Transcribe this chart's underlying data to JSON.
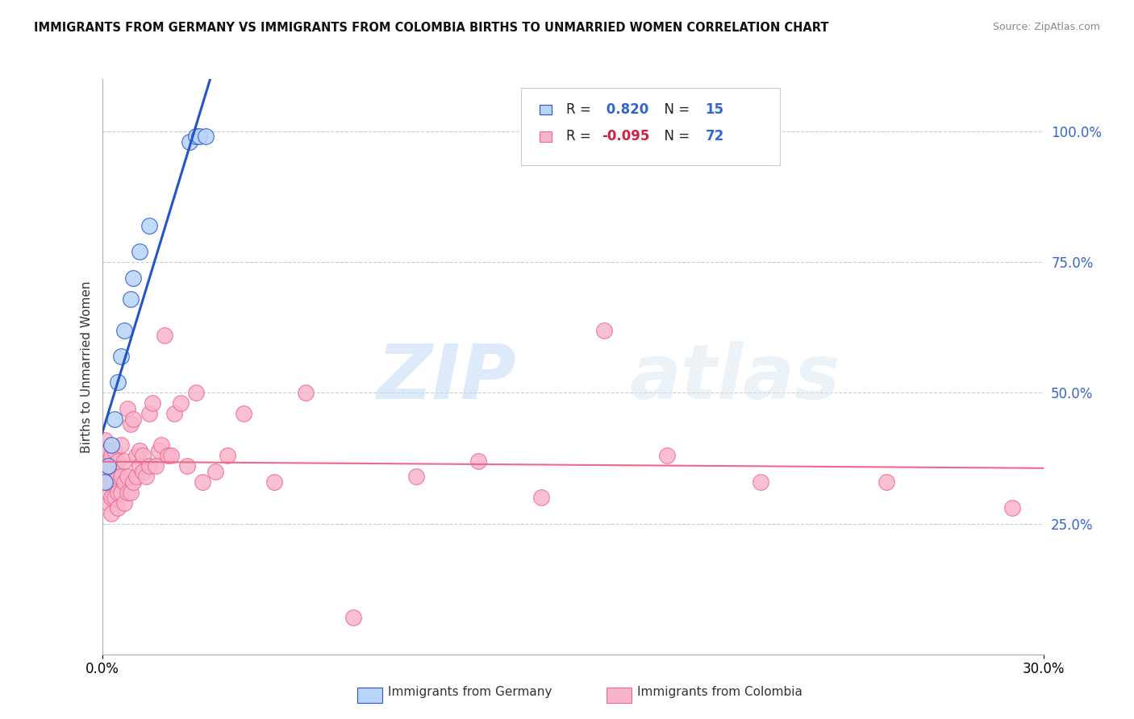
{
  "title": "IMMIGRANTS FROM GERMANY VS IMMIGRANTS FROM COLOMBIA BIRTHS TO UNMARRIED WOMEN CORRELATION CHART",
  "source": "Source: ZipAtlas.com",
  "ylabel": "Births to Unmarried Women",
  "right_yticks": [
    "100.0%",
    "75.0%",
    "50.0%",
    "25.0%"
  ],
  "right_ytick_vals": [
    1.0,
    0.75,
    0.5,
    0.25
  ],
  "watermark_zip": "ZIP",
  "watermark_atlas": "atlas",
  "legend_germany_R": " 0.820",
  "legend_germany_N": "15",
  "legend_colombia_R": "-0.095",
  "legend_colombia_N": "72",
  "germany_color": "#b8d4f8",
  "colombia_color": "#f8b4cc",
  "germany_line_color": "#2255c8",
  "colombia_line_color": "#f06888",
  "germany_x": [
    0.001,
    0.002,
    0.003,
    0.004,
    0.005,
    0.006,
    0.007,
    0.009,
    0.01,
    0.012,
    0.015,
    0.028,
    0.03,
    0.031,
    0.033
  ],
  "germany_y": [
    0.33,
    0.36,
    0.4,
    0.45,
    0.52,
    0.57,
    0.62,
    0.68,
    0.72,
    0.77,
    0.82,
    0.98,
    0.99,
    0.99,
    0.99
  ],
  "colombia_x": [
    0.001,
    0.001,
    0.001,
    0.001,
    0.001,
    0.002,
    0.002,
    0.002,
    0.002,
    0.002,
    0.002,
    0.003,
    0.003,
    0.003,
    0.003,
    0.003,
    0.004,
    0.004,
    0.004,
    0.004,
    0.005,
    0.005,
    0.005,
    0.005,
    0.006,
    0.006,
    0.006,
    0.007,
    0.007,
    0.007,
    0.008,
    0.008,
    0.008,
    0.009,
    0.009,
    0.01,
    0.01,
    0.011,
    0.011,
    0.012,
    0.012,
    0.013,
    0.013,
    0.014,
    0.015,
    0.015,
    0.016,
    0.017,
    0.018,
    0.019,
    0.02,
    0.021,
    0.022,
    0.023,
    0.025,
    0.027,
    0.03,
    0.032,
    0.036,
    0.04,
    0.045,
    0.055,
    0.065,
    0.08,
    0.1,
    0.12,
    0.14,
    0.16,
    0.18,
    0.21,
    0.25,
    0.29
  ],
  "colombia_y": [
    0.33,
    0.35,
    0.37,
    0.39,
    0.41,
    0.29,
    0.31,
    0.33,
    0.35,
    0.37,
    0.39,
    0.27,
    0.3,
    0.33,
    0.36,
    0.38,
    0.3,
    0.33,
    0.36,
    0.39,
    0.28,
    0.31,
    0.34,
    0.37,
    0.31,
    0.34,
    0.4,
    0.29,
    0.33,
    0.37,
    0.31,
    0.34,
    0.47,
    0.31,
    0.44,
    0.33,
    0.45,
    0.34,
    0.38,
    0.36,
    0.39,
    0.35,
    0.38,
    0.34,
    0.36,
    0.46,
    0.48,
    0.36,
    0.39,
    0.4,
    0.61,
    0.38,
    0.38,
    0.46,
    0.48,
    0.36,
    0.5,
    0.33,
    0.35,
    0.38,
    0.46,
    0.33,
    0.5,
    0.07,
    0.34,
    0.37,
    0.3,
    0.62,
    0.38,
    0.33,
    0.33,
    0.28
  ],
  "xlim": [
    0.0,
    0.3
  ],
  "ylim": [
    0.0,
    1.1
  ],
  "background_color": "#ffffff",
  "grid_color": "#cccccc"
}
